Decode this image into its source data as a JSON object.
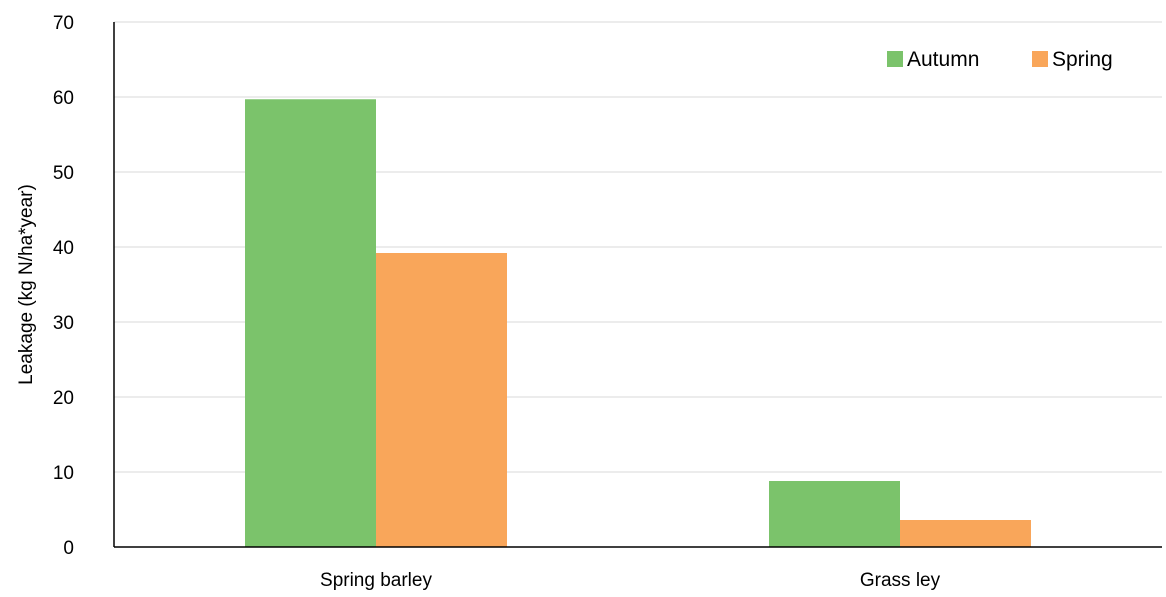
{
  "chart_data": {
    "type": "bar",
    "ylabel": "Leakage (kg N/ha*year)",
    "xlabel": "",
    "categories": [
      "Spring barley",
      "Grass ley"
    ],
    "series": [
      {
        "name": "Autumn",
        "values": [
          59.7,
          8.8
        ],
        "color": "#7bc36b"
      },
      {
        "name": "Spring",
        "values": [
          39.2,
          3.6
        ],
        "color": "#f9a65a"
      }
    ],
    "ylim": [
      0,
      70
    ],
    "yticks": [
      "0",
      "10",
      "20",
      "30",
      "40",
      "50",
      "60",
      "70"
    ],
    "grid": true,
    "legend_position": "top-right"
  }
}
